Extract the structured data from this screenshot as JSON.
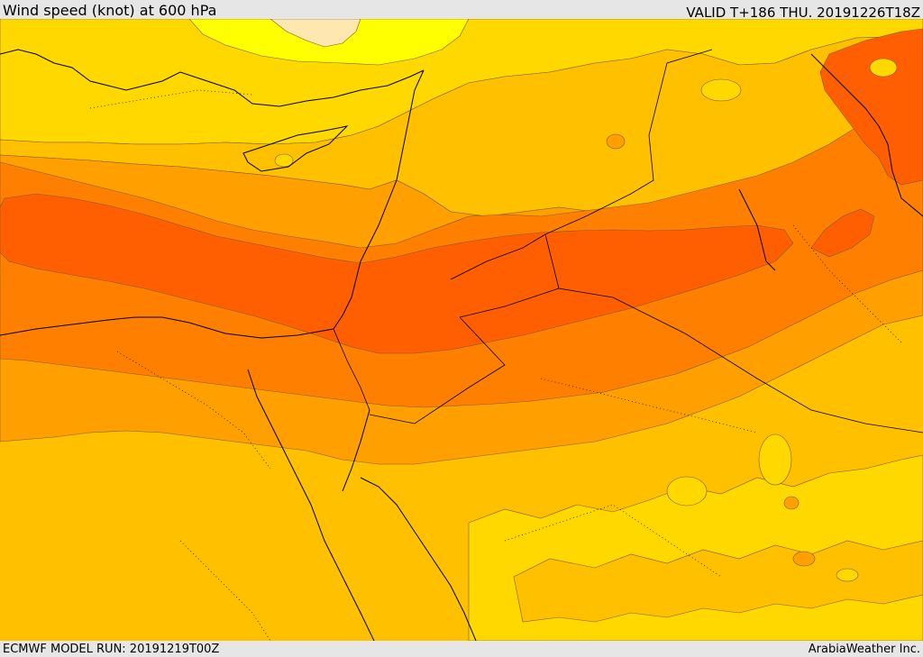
{
  "header": {
    "title": "Wind speed (knot) at 600 hPa",
    "valid_time": "VALID T+186 THU. 20191226T18Z"
  },
  "footer": {
    "model_run": "ECMWF MODEL RUN: 20191219T00Z",
    "credit": "ArabiaWeather Inc."
  },
  "map": {
    "colors": {
      "band_lightest": "#ffe8b0",
      "band_yellow": "#ffff00",
      "band_gold": "#ffd800",
      "band_amber": "#ffc000",
      "band_orange": "#ffa000",
      "band_dark_orange": "#ff8000",
      "band_red_orange": "#ff5f00",
      "coastline": "#000000",
      "contour_line": "#7a5a2a"
    }
  }
}
